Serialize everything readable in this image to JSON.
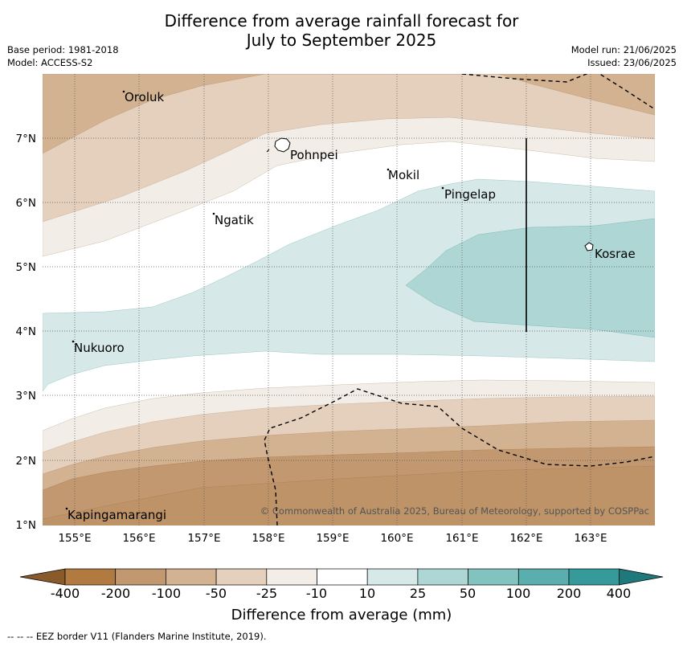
{
  "title": {
    "line1": "Difference from average rainfall forecast for",
    "line2": "July to September 2025"
  },
  "meta_left": {
    "base_period": "Base period: 1981-2018",
    "model": "Model: ACCESS-S2"
  },
  "meta_right": {
    "model_run": "Model run: 21/06/2025",
    "issued": "Issued: 23/06/2025"
  },
  "map": {
    "lon_labels": [
      "155°E",
      "156°E",
      "157°E",
      "158°E",
      "159°E",
      "160°E",
      "161°E",
      "162°E",
      "163°E"
    ],
    "lat_labels": [
      "7°N",
      "6°N",
      "5°N",
      "4°N",
      "3°N",
      "2°N",
      "1°N"
    ],
    "places": [
      "Oroluk",
      "Pohnpei",
      "Mokil",
      "Pingelap",
      "Ngatik",
      "Kosrae",
      "Nukuoro",
      "Kapingamarangi"
    ],
    "copyright": "© Commonwealth of Australia 2025, Bureau of Meteorology, supported by COSPPac"
  },
  "colorbar": {
    "ticks": [
      "-400",
      "-200",
      "-100",
      "-50",
      "-25",
      "-10",
      "10",
      "25",
      "50",
      "100",
      "200",
      "400"
    ],
    "colors": [
      "#8a5a2b",
      "#b07a40",
      "#c29870",
      "#d3b291",
      "#e4d0bd",
      "#f2ede6",
      "#ffffff",
      "#d6e9e8",
      "#aed6d5",
      "#82c3c0",
      "#5aaead",
      "#36999a",
      "#1e7a7a"
    ],
    "label": "Difference from average (mm)"
  },
  "footnote": "--  --  -- EEZ border V11 (Flanders Marine Institute, 2019)."
}
